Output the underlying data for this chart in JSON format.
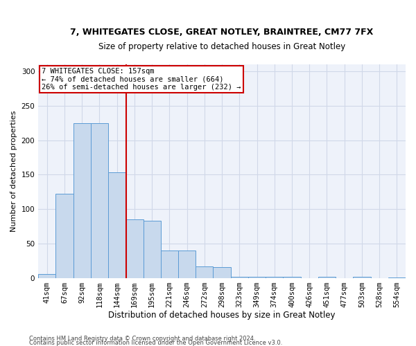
{
  "title_line1": "7, WHITEGATES CLOSE, GREAT NOTLEY, BRAINTREE, CM77 7FX",
  "title_line2": "Size of property relative to detached houses in Great Notley",
  "xlabel": "Distribution of detached houses by size in Great Notley",
  "ylabel": "Number of detached properties",
  "footer_line1": "Contains HM Land Registry data © Crown copyright and database right 2024.",
  "footer_line2": "Contains public sector information licensed under the Open Government Licence v3.0.",
  "bin_labels": [
    "41sqm",
    "67sqm",
    "92sqm",
    "118sqm",
    "144sqm",
    "169sqm",
    "195sqm",
    "221sqm",
    "246sqm",
    "272sqm",
    "298sqm",
    "323sqm",
    "349sqm",
    "374sqm",
    "400sqm",
    "426sqm",
    "451sqm",
    "477sqm",
    "503sqm",
    "528sqm",
    "554sqm"
  ],
  "bar_values": [
    6,
    122,
    225,
    225,
    153,
    85,
    83,
    40,
    40,
    17,
    16,
    2,
    2,
    2,
    2,
    0,
    2,
    0,
    2,
    0,
    1
  ],
  "bar_color": "#c8d9ed",
  "bar_edge_color": "#5b9bd5",
  "grid_color": "#d0d8e8",
  "background_color": "#eef2fa",
  "vline_x": 4.52,
  "vline_color": "#cc0000",
  "annotation_text": "7 WHITEGATES CLOSE: 157sqm\n← 74% of detached houses are smaller (664)\n26% of semi-detached houses are larger (232) →",
  "annotation_box_color": "#ffffff",
  "annotation_box_edge": "#cc0000",
  "ylim": [
    0,
    310
  ],
  "yticks": [
    0,
    50,
    100,
    150,
    200,
    250,
    300
  ],
  "title1_fontsize": 9.0,
  "title2_fontsize": 8.5,
  "ylabel_fontsize": 8.0,
  "xlabel_fontsize": 8.5,
  "tick_fontsize": 7.5,
  "annot_fontsize": 7.5
}
